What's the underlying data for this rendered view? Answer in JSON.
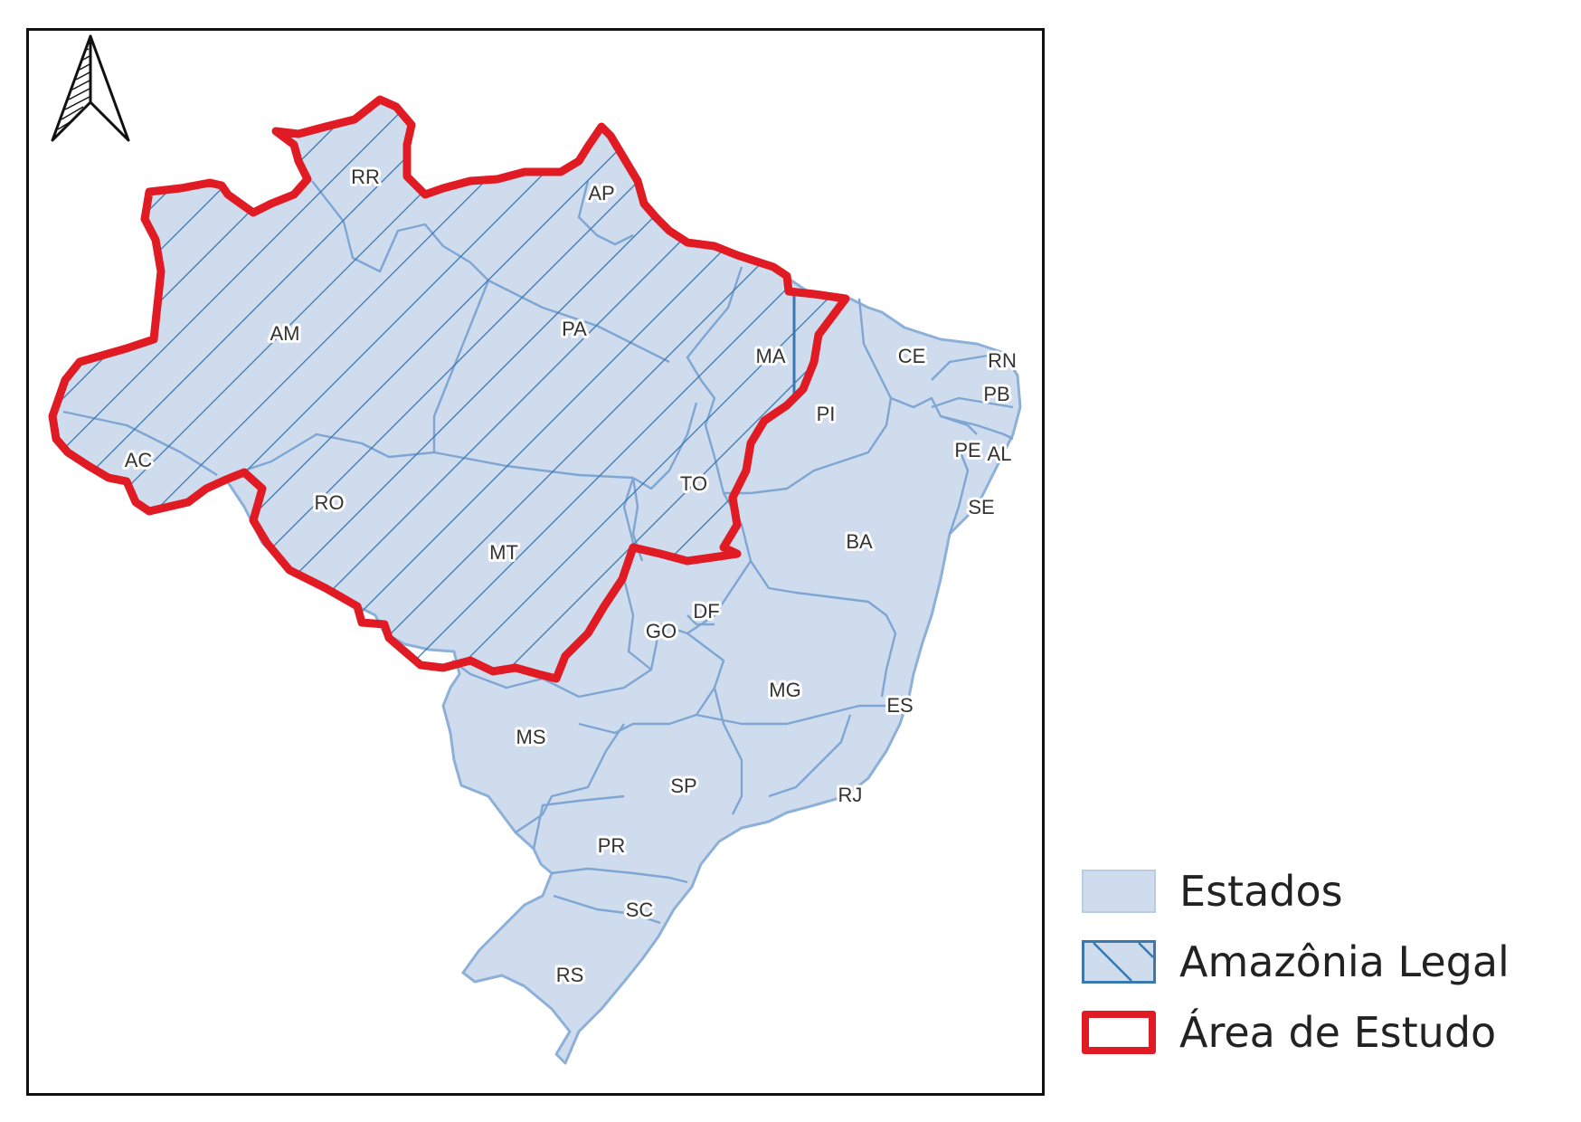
{
  "colors": {
    "state_fill": "#cfdcee",
    "state_border": "#8db0d8",
    "hatch": "#3a78b0",
    "study_area": "#e01b24",
    "frame": "#111111"
  },
  "north_arrow": {
    "icon": "north-arrow-icon"
  },
  "states": [
    {
      "code": "RR"
    },
    {
      "code": "AP"
    },
    {
      "code": "AM"
    },
    {
      "code": "PA"
    },
    {
      "code": "MA"
    },
    {
      "code": "CE"
    },
    {
      "code": "RN"
    },
    {
      "code": "PB"
    },
    {
      "code": "PI"
    },
    {
      "code": "PE"
    },
    {
      "code": "AL"
    },
    {
      "code": "AC"
    },
    {
      "code": "TO"
    },
    {
      "code": "SE"
    },
    {
      "code": "RO"
    },
    {
      "code": "BA"
    },
    {
      "code": "MT"
    },
    {
      "code": "DF"
    },
    {
      "code": "GO"
    },
    {
      "code": "MG"
    },
    {
      "code": "ES"
    },
    {
      "code": "MS"
    },
    {
      "code": "SP"
    },
    {
      "code": "RJ"
    },
    {
      "code": "PR"
    },
    {
      "code": "SC"
    },
    {
      "code": "RS"
    }
  ],
  "legend": {
    "estados": "Estados",
    "amazonia_legal": "Amazônia Legal",
    "area_estudo": "Área de Estudo"
  }
}
